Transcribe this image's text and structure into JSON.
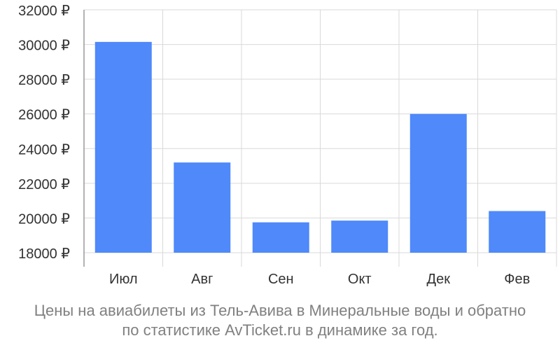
{
  "chart_data": {
    "type": "bar",
    "categories": [
      "Июл",
      "Авг",
      "Сен",
      "Окт",
      "Дек",
      "Фев"
    ],
    "values": [
      30150,
      23200,
      19750,
      19850,
      26000,
      20400
    ],
    "ylim": [
      18000,
      32000
    ],
    "yticks": [
      "18000 ₽",
      "20000 ₽",
      "22000 ₽",
      "24000 ₽",
      "26000 ₽",
      "28000 ₽",
      "30000 ₽",
      "32000 ₽"
    ],
    "ytick_values": [
      18000,
      20000,
      22000,
      24000,
      26000,
      28000,
      30000,
      32000
    ],
    "bar_color": "#4f89fa",
    "grid": true,
    "xlabel": "",
    "ylabel": ""
  },
  "caption": {
    "line1": "Цены на авиабилеты из Тель-Авива в Минеральные воды и обратно",
    "line2": "по статистике AvTicket.ru в динамике за год."
  }
}
